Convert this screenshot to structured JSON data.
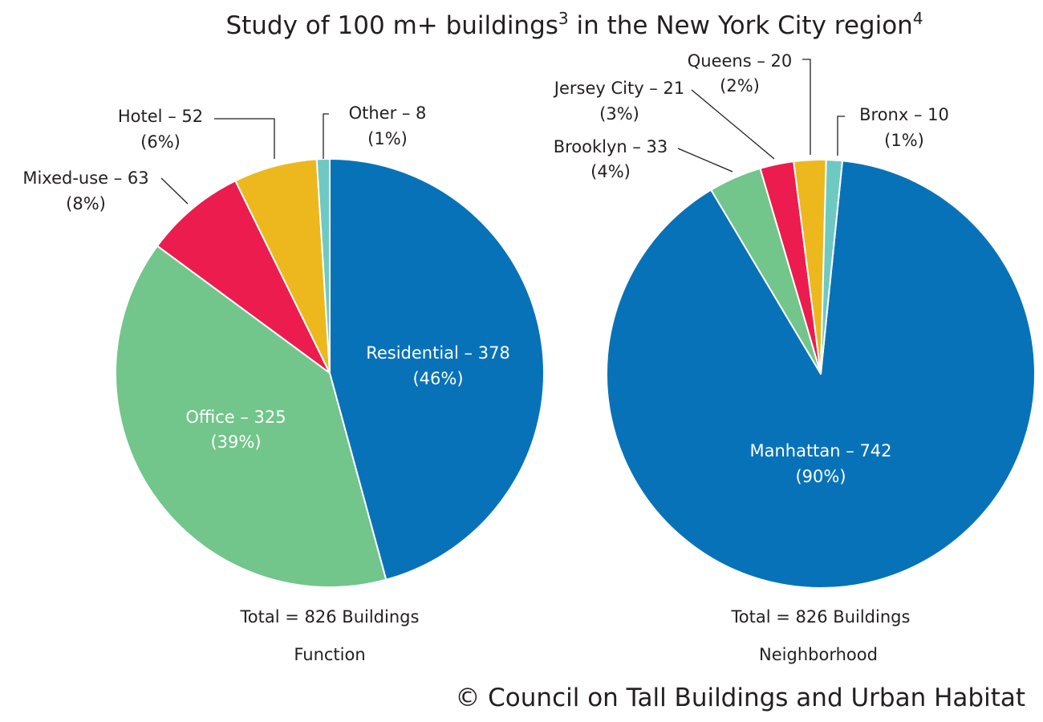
{
  "title": {
    "main": "Study of 100 m+ buildings",
    "sup1": "3",
    "mid": " in the New York City region",
    "sup2": "4"
  },
  "copyright": "© Council on Tall Buildings and Urban Habitat",
  "colors": {
    "blue": "#0872b9",
    "green": "#72c58b",
    "red": "#ec1c4e",
    "yellow": "#ecb81e",
    "teal": "#6ec9c2"
  },
  "chart_data": [
    {
      "type": "pie",
      "title": "Function",
      "total_label": "Total = 826 Buildings",
      "start": "top, clockwise",
      "slices": [
        {
          "name": "Residential",
          "value": 378,
          "label": "Residential – 378",
          "pct": "(46%)",
          "color": "#0872b9"
        },
        {
          "name": "Office",
          "value": 325,
          "label": "Office – 325",
          "pct": "(39%)",
          "color": "#72c58b"
        },
        {
          "name": "Mixed-use",
          "value": 63,
          "label": "Mixed-use – 63",
          "pct": "(8%)",
          "color": "#ec1c4e"
        },
        {
          "name": "Hotel",
          "value": 52,
          "label": "Hotel – 52",
          "pct": "(6%)",
          "color": "#ecb81e"
        },
        {
          "name": "Other",
          "value": 8,
          "label": "Other – 8",
          "pct": "(1%)",
          "color": "#6ec9c2"
        }
      ]
    },
    {
      "type": "pie",
      "title": "Neighborhood",
      "total_label": "Total = 826 Buildings",
      "start": "near top, clockwise",
      "slices": [
        {
          "name": "Manhattan",
          "value": 742,
          "label": "Manhattan – 742",
          "pct": "(90%)",
          "color": "#0872b9"
        },
        {
          "name": "Brooklyn",
          "value": 33,
          "label": "Brooklyn – 33",
          "pct": "(4%)",
          "color": "#72c58b"
        },
        {
          "name": "Jersey City",
          "value": 21,
          "label": "Jersey City – 21",
          "pct": "(3%)",
          "color": "#ec1c4e"
        },
        {
          "name": "Queens",
          "value": 20,
          "label": "Queens – 20",
          "pct": "(2%)",
          "color": "#ecb81e"
        },
        {
          "name": "Bronx",
          "value": 10,
          "label": "Bronx – 10",
          "pct": "(1%)",
          "color": "#6ec9c2"
        }
      ]
    }
  ]
}
